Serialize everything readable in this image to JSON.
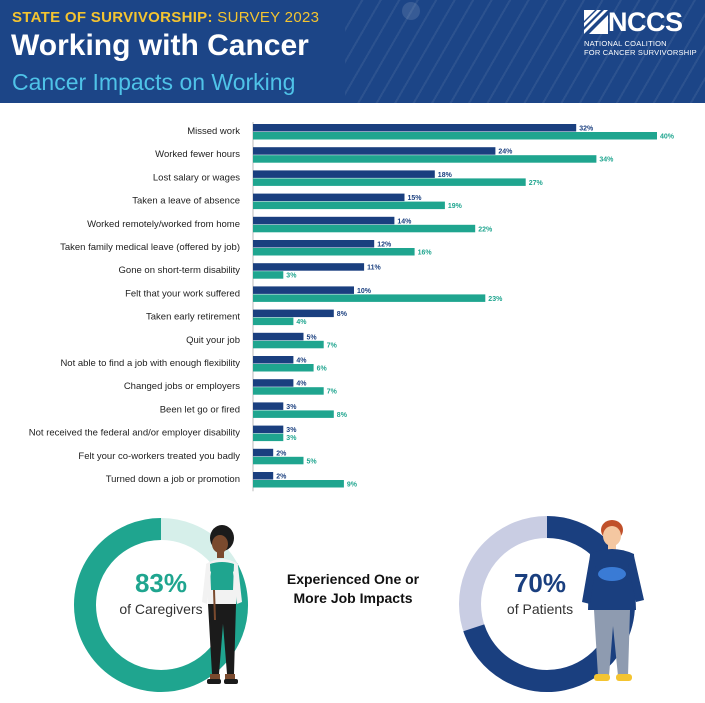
{
  "header": {
    "eyebrow_bold": "STATE OF SURVIVORSHIP:",
    "eyebrow_light": "SURVEY 2023",
    "title": "Working with Cancer",
    "subtitle": "Cancer Impacts on Working",
    "logo_text": "NCCS",
    "logo_line1": "NATIONAL COALITION",
    "logo_line2": "FOR CANCER SURVIVORSHIP"
  },
  "colors": {
    "header_bg": "#1c4587",
    "patients": "#1a3f7f",
    "caregivers": "#1fa58f",
    "caregiver_ring_light": "#d6efea",
    "patient_ring_light": "#c9cde3",
    "accent_yellow": "#f4c430",
    "subtitle_blue": "#4fc3e8"
  },
  "chart_data": {
    "type": "bar",
    "orientation": "horizontal",
    "categories": [
      "Missed work",
      "Worked fewer hours",
      "Lost salary or wages",
      "Taken a leave of absence",
      "Worked remotely/worked from home",
      "Taken family medical leave (offered by job)",
      "Gone on short-term disability",
      "Felt that your work suffered",
      "Taken early retirement",
      "Quit your job",
      "Not able to find a job with enough flexibility",
      "Changed jobs or employers",
      "Been let go or fired",
      "Not received the federal and/or employer disability",
      "Felt your co-workers treated you badly",
      "Turned down a job or promotion"
    ],
    "series": [
      {
        "values": [
          32,
          24,
          18,
          15,
          14,
          12,
          11,
          10,
          8,
          5,
          4,
          4,
          3,
          3,
          2,
          2
        ],
        "color": "#1a3f7f"
      },
      {
        "values": [
          40,
          34,
          27,
          19,
          22,
          16,
          3,
          23,
          4,
          7,
          6,
          7,
          8,
          3,
          5,
          9
        ],
        "color": "#1fa58f"
      }
    ],
    "value_suffix": "%",
    "xlim": [
      0,
      40
    ],
    "grid": false
  },
  "summary": {
    "heading_line1": "Experienced One or",
    "heading_line2": "More Job Impacts",
    "caregivers": {
      "percent": 83,
      "percent_label": "83%",
      "label": "of Caregivers"
    },
    "patients": {
      "percent": 70,
      "percent_label": "70%",
      "label": "of Patients"
    }
  }
}
